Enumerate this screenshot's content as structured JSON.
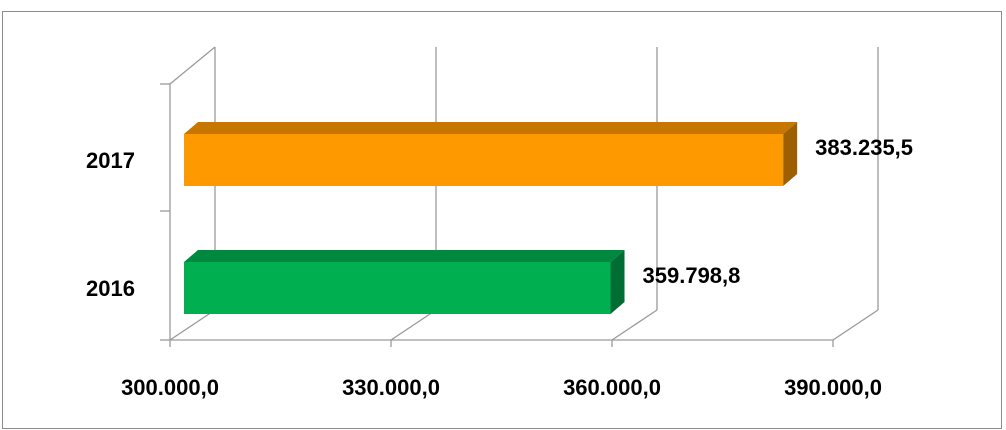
{
  "chart_data": {
    "type": "bar",
    "orientation": "horizontal",
    "three_d": true,
    "title": "",
    "xlabel": "",
    "ylabel": "",
    "categories": [
      "2016",
      "2017"
    ],
    "values": [
      359798.8,
      383235.5
    ],
    "data_labels": [
      "359.798,8",
      "383.235,5"
    ],
    "colors": [
      "#00b050",
      "#ff9900"
    ],
    "xlim": [
      300000,
      390000
    ],
    "x_ticks": [
      300000,
      330000,
      360000,
      390000
    ],
    "x_tick_labels": [
      "300.000,0",
      "330.000,0",
      "360.000,0",
      "390.000,0"
    ],
    "grid": true,
    "legend": "none"
  }
}
